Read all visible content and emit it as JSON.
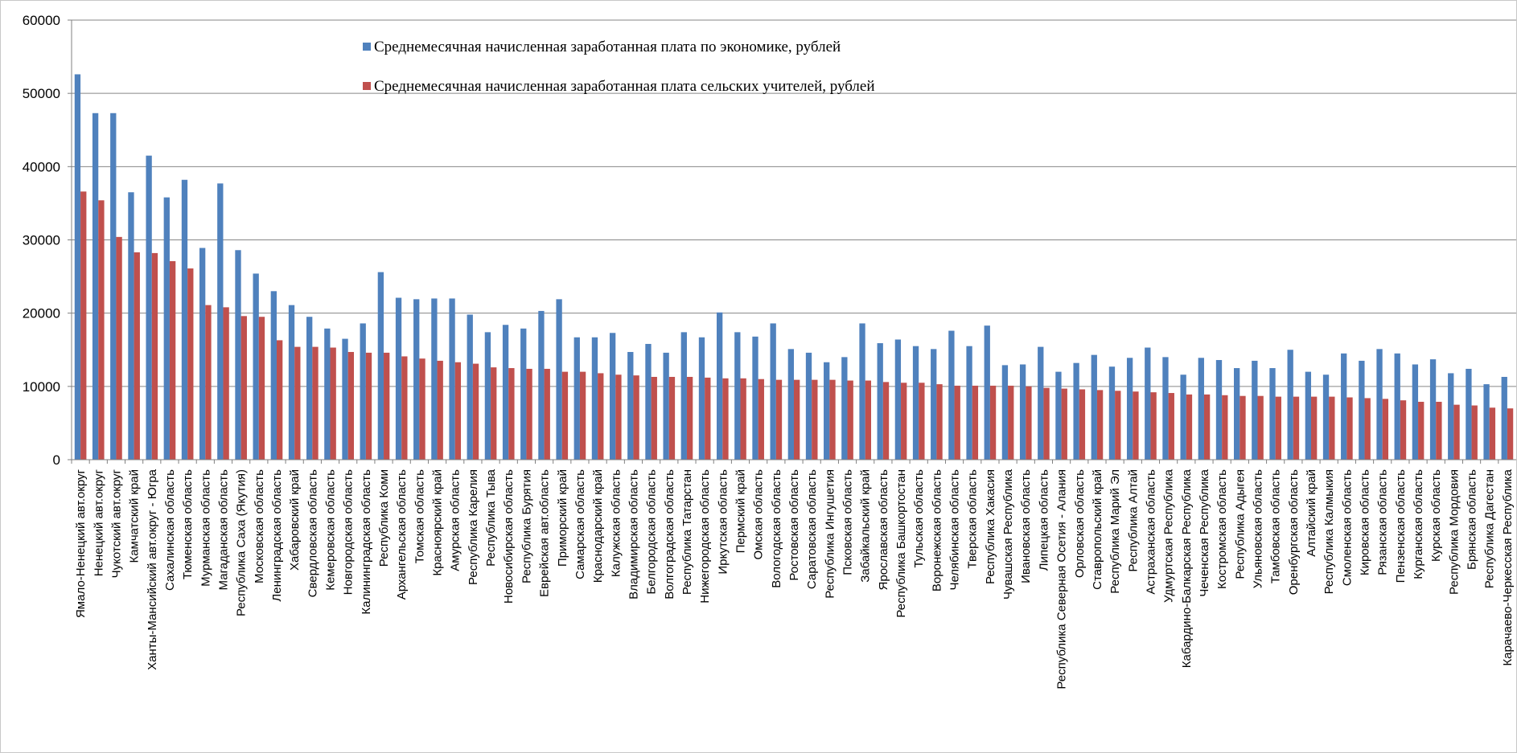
{
  "chart_data": {
    "type": "bar",
    "ylim": [
      0,
      60000
    ],
    "yticks": [
      "0",
      "10000",
      "20000",
      "30000",
      "40000",
      "50000",
      "60000"
    ],
    "grid": true,
    "legend_position": "top",
    "colors": {
      "series1": "#4F81BD",
      "series2": "#C0504D",
      "grid": "#868686",
      "axis": "#808080"
    },
    "categories": [
      "Ямало-Ненецкий авт.округ",
      "Ненецкий авт.округ",
      "Чукотский авт.округ",
      "Камчатский край",
      "Ханты-Мансийский авт.округ - Югра",
      "Сахалинская область",
      "Тюменская область",
      "Мурманская область",
      "Магаданская область",
      "Республика Саха (Якутия)",
      "Московская область",
      "Ленинградская область",
      "Хабаровский край",
      "Свердловская область",
      "Кемеровская область",
      "Новгородская область",
      "Калининградская область",
      "Республика Коми",
      "Архангельская область",
      "Томская область",
      "Красноярский край",
      "Амурская область",
      "Республика Карелия",
      "Республика Тыва",
      "Новосибирская область",
      "Республика Бурятия",
      "Еврейская авт.область",
      "Приморский край",
      "Самарская область",
      "Краснодарский край",
      "Калужская область",
      "Владимирская область",
      "Белгородская область",
      "Волгоградская область",
      "Республика Татарстан",
      "Нижегородская область",
      "Иркутская область",
      "Пермский край",
      "Омская область",
      "Вологодская область",
      "Ростовская область",
      "Саратовская область",
      "Республика Ингушетия",
      "Псковская область",
      "Забайкальский край",
      "Ярославская область",
      "Республика Башкортостан",
      "Тульская область",
      "Воронежская область",
      "Челябинская область",
      "Тверская область",
      "Республика Хакасия",
      "Чувашская Республика",
      "Ивановская область",
      "Липецкая область",
      "Республика Северная Осетия - Алания",
      "Орловская область",
      "Ставропольский край",
      "Республика Марий Эл",
      "Республика Алтай",
      "Астраханская область",
      "Удмуртская Республика",
      "Кабардино-Балкарская Республика",
      "Чеченская Республика",
      "Костромская область",
      "Республика Адыгея",
      "Ульяновская область",
      "Тамбовская область",
      "Оренбургская область",
      "Алтайский край",
      "Республика Калмыкия",
      "Смоленская область",
      "Кировская область",
      "Рязанская область",
      "Пензенская область",
      "Курганская область",
      "Курская область",
      "Республика Мордовия",
      "Брянская область",
      "Республика Дагестан",
      "Карачаево-Черкесская Республика"
    ],
    "series": [
      {
        "name": "Среднемесячная начисленная заработанная плата по экономике, рублей",
        "values": [
          52600,
          47300,
          47300,
          36500,
          41500,
          35800,
          38200,
          28900,
          37700,
          28600,
          25400,
          23000,
          21100,
          19500,
          17900,
          16500,
          18600,
          25600,
          22100,
          21900,
          22000,
          22000,
          19800,
          17400,
          18400,
          17900,
          20300,
          21900,
          16700,
          16700,
          17300,
          14700,
          15800,
          14600,
          17400,
          16700,
          20100,
          17400,
          16800,
          18600,
          15100,
          14600,
          13300,
          14000,
          18600,
          15900,
          16400,
          15500,
          15100,
          17600,
          15500,
          18300,
          12900,
          13000,
          15400,
          12000,
          13200,
          14300,
          12700,
          13900,
          15300,
          14000,
          11600,
          13900,
          13600,
          12500,
          13500,
          12500,
          15000,
          12000,
          11600,
          14500,
          13500,
          15100,
          14500,
          13000,
          13700,
          11800,
          12400,
          10300,
          11300
        ]
      },
      {
        "name": "Среднемесячная начисленная заработанная плата сельских учителей, рублей",
        "values": [
          36600,
          35400,
          30400,
          28300,
          28200,
          27100,
          26100,
          21100,
          20800,
          19600,
          19500,
          16300,
          15400,
          15400,
          15300,
          14700,
          14600,
          14600,
          14100,
          13800,
          13500,
          13300,
          13100,
          12600,
          12500,
          12400,
          12400,
          12000,
          12000,
          11800,
          11600,
          11500,
          11300,
          11300,
          11300,
          11200,
          11100,
          11100,
          11000,
          10900,
          10900,
          10900,
          10900,
          10800,
          10800,
          10600,
          10500,
          10500,
          10300,
          10100,
          10100,
          10100,
          10100,
          10000,
          9800,
          9700,
          9600,
          9500,
          9400,
          9300,
          9200,
          9100,
          8900,
          8900,
          8800,
          8700,
          8700,
          8600,
          8600,
          8600,
          8600,
          8500,
          8400,
          8300,
          8100,
          7900,
          7900,
          7500,
          7400,
          7100,
          7000
        ]
      }
    ]
  }
}
